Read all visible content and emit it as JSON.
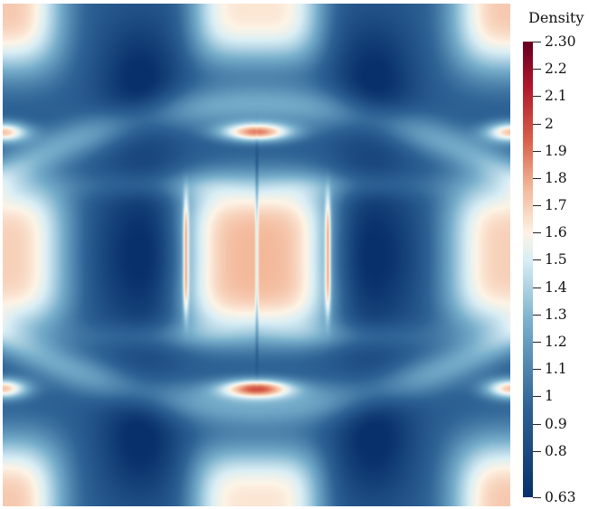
{
  "legend": {
    "title": "Density",
    "min_label": "0.63",
    "max_label": "2.30",
    "range": [
      0.63,
      2.3
    ],
    "ticks": [
      "2.2",
      "2.1",
      "2",
      "1.9",
      "1.8",
      "1.7",
      "1.6",
      "1.5",
      "1.4",
      "1.3",
      "1.2",
      "1.1",
      "1",
      "0.9",
      "0.8"
    ],
    "colormap": {
      "name": "cool-to-warm (RdBu reversed)",
      "stops": [
        {
          "v": 0.0,
          "color": "#08306b"
        },
        {
          "v": 0.2,
          "color": "#2f6496"
        },
        {
          "v": 0.38,
          "color": "#77aecb"
        },
        {
          "v": 0.52,
          "color": "#d9eef5"
        },
        {
          "v": 0.58,
          "color": "#fdf4e6"
        },
        {
          "v": 0.68,
          "color": "#f3b89a"
        },
        {
          "v": 0.78,
          "color": "#d9644e"
        },
        {
          "v": 0.9,
          "color": "#b2192b"
        },
        {
          "v": 1.0,
          "color": "#67001f"
        }
      ]
    }
  }
}
